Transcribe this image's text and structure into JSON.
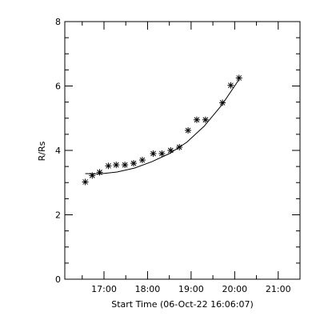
{
  "chart_data": {
    "type": "scatter",
    "title": "",
    "xlabel": "Start Time (06-Oct-22 16:06:07)",
    "ylabel": "R/Rs",
    "x_unit": "hours since start time",
    "xlim": [
      0,
      5.4
    ],
    "ylim": [
      0,
      8
    ],
    "x_ticks": [
      {
        "value": 0.9,
        "label": "17:00"
      },
      {
        "value": 1.9,
        "label": "18:00"
      },
      {
        "value": 2.9,
        "label": "19:00"
      },
      {
        "value": 3.9,
        "label": "20:00"
      },
      {
        "value": 4.9,
        "label": "21:00"
      }
    ],
    "y_ticks": [
      {
        "value": 0,
        "label": "0"
      },
      {
        "value": 2,
        "label": "2"
      },
      {
        "value": 4,
        "label": "4"
      },
      {
        "value": 6,
        "label": "6"
      },
      {
        "value": 8,
        "label": "8"
      }
    ],
    "series": [
      {
        "kind": "points",
        "marker": "asterisk",
        "x": [
          0.47,
          0.63,
          0.8,
          1.0,
          1.18,
          1.38,
          1.58,
          1.78,
          2.03,
          2.23,
          2.43,
          2.63,
          2.83,
          3.03,
          3.23,
          3.62,
          3.81,
          4.0
        ],
        "y": [
          3.02,
          3.22,
          3.32,
          3.52,
          3.55,
          3.55,
          3.6,
          3.7,
          3.9,
          3.9,
          4.0,
          4.1,
          4.62,
          4.95,
          4.95,
          5.48,
          6.02,
          6.25
        ]
      },
      {
        "kind": "fit",
        "x": [
          0.47,
          0.8,
          1.2,
          1.6,
          2.0,
          2.4,
          2.8,
          3.2,
          3.6,
          4.0
        ],
        "y": [
          3.28,
          3.27,
          3.33,
          3.45,
          3.65,
          3.9,
          4.25,
          4.75,
          5.4,
          6.2
        ]
      }
    ]
  }
}
